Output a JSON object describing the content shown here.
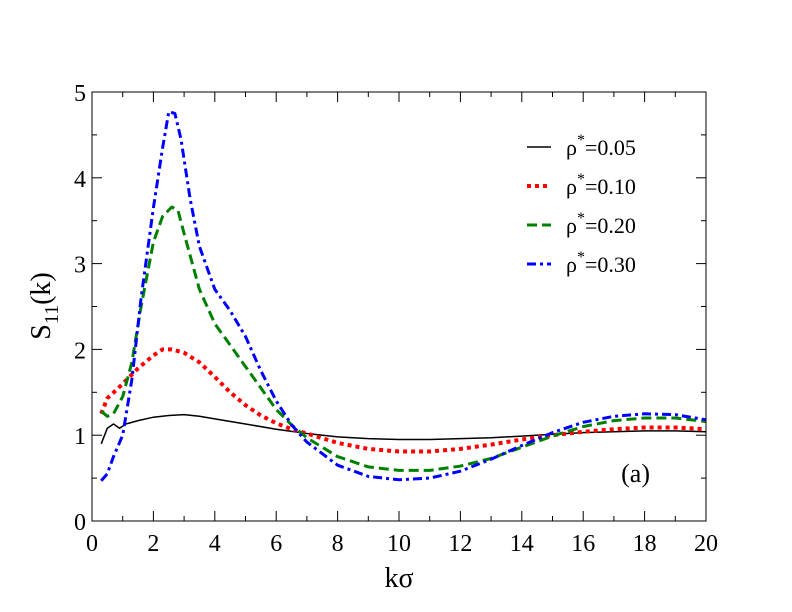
{
  "chart_data": {
    "type": "line",
    "title": "",
    "xlabel": "kσ",
    "ylabel_main": "S",
    "ylabel_sub": "11",
    "ylabel_tail": "(k)",
    "xlim": [
      0,
      20
    ],
    "ylim": [
      0,
      5
    ],
    "xticks": [
      0,
      2,
      4,
      6,
      8,
      10,
      12,
      14,
      16,
      18,
      20
    ],
    "yticks": [
      0,
      1,
      2,
      3,
      4,
      5
    ],
    "grid": false,
    "legend_position": "top-right",
    "annotation": "(a)",
    "series": [
      {
        "name": "ρ*=0.05",
        "legend_base": "ρ",
        "legend_sup": "*",
        "legend_value": "=0.05",
        "color": "#000000",
        "style": "solid",
        "x": [
          0.3,
          0.5,
          0.7,
          0.9,
          1.1,
          1.5,
          2.0,
          2.5,
          3.0,
          3.5,
          4.0,
          5.0,
          6.0,
          7.0,
          8.0,
          9.0,
          10.0,
          11.0,
          12.0,
          13.0,
          14.0,
          15.0,
          16.0,
          17.0,
          18.0,
          19.0,
          20.0
        ],
        "y": [
          0.9,
          1.08,
          1.13,
          1.08,
          1.13,
          1.17,
          1.21,
          1.23,
          1.24,
          1.22,
          1.19,
          1.13,
          1.07,
          1.02,
          0.98,
          0.96,
          0.95,
          0.95,
          0.96,
          0.97,
          0.99,
          1.01,
          1.03,
          1.04,
          1.05,
          1.05,
          1.04
        ]
      },
      {
        "name": "ρ*=0.10",
        "legend_base": "ρ",
        "legend_sup": "*",
        "legend_value": "=0.10",
        "color": "#ff0000",
        "style": "dotted",
        "x": [
          0.3,
          0.5,
          0.8,
          1.0,
          1.5,
          2.0,
          2.3,
          2.6,
          3.0,
          3.5,
          4.0,
          4.5,
          5.0,
          5.5,
          6.0,
          6.5,
          7.0,
          8.0,
          9.0,
          10.0,
          11.0,
          12.0,
          13.0,
          14.0,
          15.0,
          16.0,
          17.0,
          18.0,
          19.0,
          20.0
        ],
        "y": [
          1.25,
          1.43,
          1.53,
          1.6,
          1.78,
          1.93,
          2.0,
          2.0,
          1.96,
          1.85,
          1.68,
          1.5,
          1.35,
          1.23,
          1.14,
          1.07,
          1.02,
          0.91,
          0.84,
          0.81,
          0.81,
          0.84,
          0.89,
          0.95,
          1.0,
          1.04,
          1.07,
          1.09,
          1.09,
          1.07
        ]
      },
      {
        "name": "ρ*=0.20",
        "legend_base": "ρ",
        "legend_sup": "*",
        "legend_value": "=0.20",
        "color": "#008000",
        "style": "dashed",
        "x": [
          0.3,
          0.5,
          0.7,
          1.0,
          1.3,
          1.6,
          2.0,
          2.3,
          2.6,
          2.8,
          3.0,
          3.5,
          4.0,
          4.5,
          5.0,
          5.5,
          6.0,
          6.5,
          7.0,
          8.0,
          9.0,
          10.0,
          11.0,
          12.0,
          13.0,
          14.0,
          15.0,
          16.0,
          17.0,
          18.0,
          19.0,
          20.0
        ],
        "y": [
          1.28,
          1.22,
          1.25,
          1.45,
          1.85,
          2.5,
          3.25,
          3.55,
          3.66,
          3.62,
          3.35,
          2.7,
          2.3,
          2.05,
          1.8,
          1.55,
          1.3,
          1.12,
          0.97,
          0.75,
          0.63,
          0.59,
          0.59,
          0.64,
          0.73,
          0.86,
          0.99,
          1.1,
          1.17,
          1.2,
          1.2,
          1.16
        ]
      },
      {
        "name": "ρ*=0.30",
        "legend_base": "ρ",
        "legend_sup": "*",
        "legend_value": "=0.30",
        "color": "#0000ff",
        "style": "dashdot",
        "x": [
          0.3,
          0.5,
          0.7,
          1.0,
          1.3,
          1.6,
          2.0,
          2.3,
          2.5,
          2.7,
          2.9,
          3.2,
          3.5,
          4.0,
          4.5,
          5.0,
          5.5,
          6.0,
          6.5,
          7.0,
          8.0,
          9.0,
          10.0,
          11.0,
          12.0,
          13.0,
          14.0,
          15.0,
          16.0,
          17.0,
          18.0,
          19.0,
          20.0
        ],
        "y": [
          0.47,
          0.55,
          0.75,
          1.0,
          1.65,
          2.6,
          3.65,
          4.35,
          4.77,
          4.75,
          4.45,
          3.75,
          3.2,
          2.7,
          2.45,
          2.15,
          1.75,
          1.4,
          1.12,
          0.92,
          0.65,
          0.52,
          0.48,
          0.5,
          0.58,
          0.72,
          0.88,
          1.03,
          1.15,
          1.22,
          1.25,
          1.24,
          1.18
        ]
      }
    ]
  }
}
